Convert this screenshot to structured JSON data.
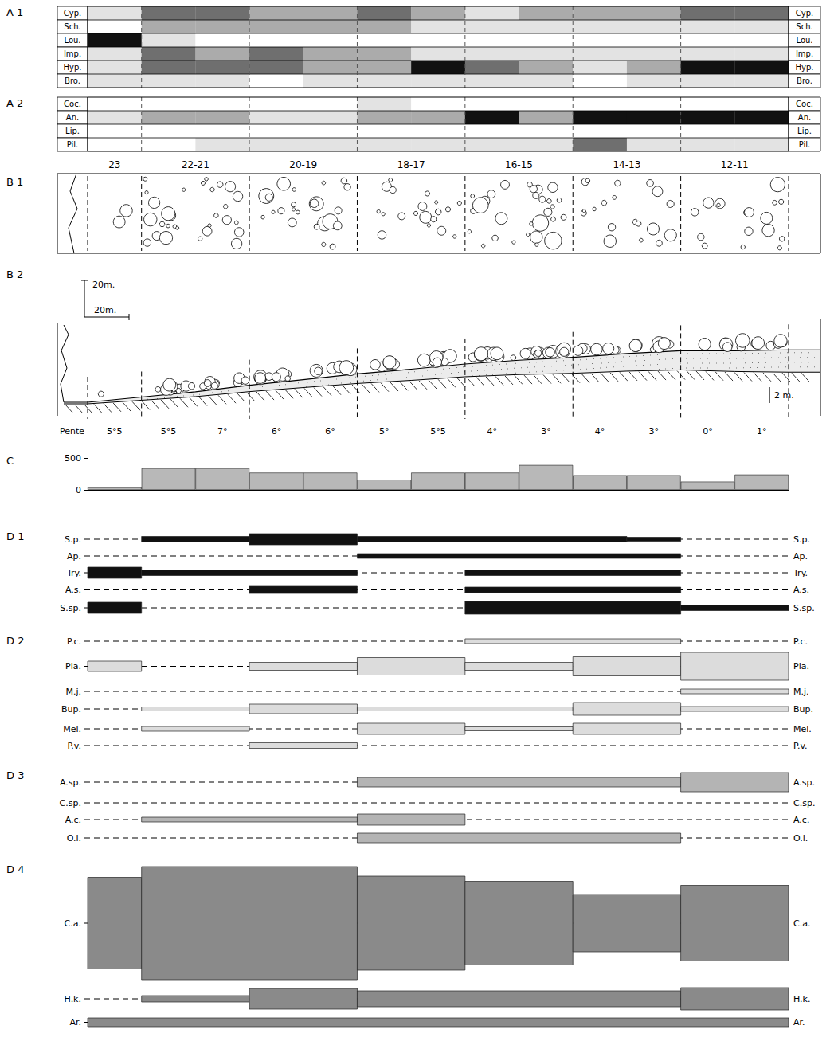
{
  "chart_data": {
    "type": "bar",
    "categories": [
      null,
      null,
      null,
      null,
      null,
      null,
      null,
      null,
      null,
      null,
      null,
      null,
      null
    ],
    "values": [
      40,
      340,
      340,
      270,
      270,
      160,
      270,
      270,
      390,
      230,
      230,
      130,
      240
    ],
    "ylim": [
      0,
      500
    ],
    "yticks": [
      0,
      500
    ],
    "tick_labels": "y",
    "color": "#b8b8b8"
  },
  "figure": {
    "sections": [
      "23",
      "22-21",
      "20-19",
      "18-17",
      "16-15",
      "14-13",
      "12-11"
    ],
    "A1": {
      "label": "A 1",
      "rows": [
        {
          "name": "Cyp.",
          "levels": [
            1,
            3,
            3,
            2,
            2,
            3,
            2,
            1,
            2,
            2,
            2,
            3,
            3
          ]
        },
        {
          "name": "Sch.",
          "levels": [
            0,
            2,
            2,
            2,
            2,
            2,
            1,
            1,
            1,
            1,
            1,
            1,
            1
          ]
        },
        {
          "name": "Lou.",
          "levels": [
            4,
            1,
            0,
            0,
            0,
            0,
            0,
            0,
            0,
            0,
            0,
            0,
            0
          ]
        },
        {
          "name": "Imp.",
          "levels": [
            1,
            3,
            2,
            3,
            2,
            2,
            1,
            1,
            1,
            1,
            1,
            1,
            1
          ]
        },
        {
          "name": "Hyp.",
          "levels": [
            1,
            3,
            3,
            3,
            2,
            2,
            4,
            3,
            2,
            1,
            2,
            4,
            4
          ]
        },
        {
          "name": "Bro.",
          "levels": [
            1,
            1,
            1,
            0,
            1,
            1,
            1,
            1,
            1,
            0,
            1,
            1,
            1
          ]
        }
      ]
    },
    "A2": {
      "label": "A 2",
      "rows": [
        {
          "name": "Coc.",
          "levels": [
            0,
            0,
            0,
            0,
            0,
            1,
            0,
            0,
            0,
            0,
            0,
            0,
            0
          ]
        },
        {
          "name": "An.",
          "levels": [
            1,
            2,
            2,
            1,
            1,
            2,
            2,
            4,
            2,
            4,
            4,
            4,
            4
          ]
        },
        {
          "name": "Lip.",
          "levels": [
            0,
            0,
            0,
            0,
            0,
            0,
            0,
            0,
            0,
            0,
            0,
            0,
            0
          ]
        },
        {
          "name": "Pil.",
          "levels": [
            0,
            0,
            1,
            1,
            1,
            1,
            1,
            1,
            1,
            3,
            1,
            1,
            1
          ]
        }
      ]
    },
    "B1": {
      "label": "B 1"
    },
    "B2": {
      "label": "B 2",
      "slope_title": "Pente",
      "slopes": [
        {
          "value": 5.5,
          "label": "5°5"
        },
        {
          "value": 5.5,
          "label": "5°5"
        },
        {
          "value": 7,
          "label": "7°"
        },
        {
          "value": 6,
          "label": "6°"
        },
        {
          "value": 6,
          "label": "6°"
        },
        {
          "value": 5,
          "label": "5°"
        },
        {
          "value": 5.5,
          "label": "5°5"
        },
        {
          "value": 4,
          "label": "4°"
        },
        {
          "value": 3,
          "label": "3°"
        },
        {
          "value": 4,
          "label": "4°"
        },
        {
          "value": 3,
          "label": "3°"
        },
        {
          "value": 0,
          "label": "0°"
        },
        {
          "value": 1,
          "label": "1°"
        }
      ],
      "scale_labels": [
        "20m.",
        "20m.",
        "2 m."
      ]
    },
    "C": {
      "label": "C"
    },
    "D": [
      {
        "label": "D 1",
        "color": "#111111",
        "rows": [
          {
            "name": "S.p.",
            "values": [
              0,
              7,
              7,
              14,
              14,
              7,
              7,
              7,
              7,
              7,
              5,
              0,
              0
            ]
          },
          {
            "name": "Ap.",
            "values": [
              0,
              0,
              0,
              0,
              0,
              6,
              6,
              6,
              6,
              6,
              6,
              0,
              0
            ]
          },
          {
            "name": "Try.",
            "values": [
              14,
              7,
              7,
              7,
              7,
              0,
              0,
              7,
              7,
              7,
              7,
              0,
              0
            ]
          },
          {
            "name": "A.s.",
            "values": [
              0,
              0,
              0,
              9,
              9,
              0,
              0,
              7,
              7,
              7,
              7,
              0,
              0
            ]
          },
          {
            "name": "S.sp.",
            "values": [
              14,
              0,
              0,
              0,
              0,
              0,
              0,
              16,
              16,
              16,
              16,
              7,
              7
            ]
          }
        ]
      },
      {
        "label": "D 2",
        "color": "#dcdcdc",
        "rows": [
          {
            "name": "P.c.",
            "values": [
              0,
              0,
              0,
              0,
              0,
              0,
              0,
              6,
              6,
              6,
              6,
              0,
              0
            ]
          },
          {
            "name": "Pla.",
            "values": [
              13,
              0,
              0,
              10,
              10,
              22,
              22,
              10,
              10,
              24,
              24,
              35,
              35
            ]
          },
          {
            "name": "M.j.",
            "values": [
              0,
              0,
              0,
              0,
              0,
              0,
              0,
              0,
              0,
              0,
              0,
              6,
              6
            ]
          },
          {
            "name": "Bup.",
            "values": [
              0,
              5,
              5,
              12,
              12,
              5,
              5,
              5,
              5,
              16,
              16,
              6,
              6
            ]
          },
          {
            "name": "Mel.",
            "values": [
              0,
              6,
              6,
              0,
              0,
              14,
              14,
              5,
              5,
              14,
              14,
              0,
              0
            ]
          },
          {
            "name": "P.v.",
            "values": [
              0,
              0,
              0,
              7,
              7,
              0,
              0,
              0,
              0,
              0,
              0,
              0,
              0
            ]
          }
        ]
      },
      {
        "label": "D 3",
        "color": "#b4b4b4",
        "rows": [
          {
            "name": "A.sp.",
            "values": [
              0,
              0,
              0,
              0,
              0,
              12,
              12,
              12,
              12,
              12,
              12,
              24,
              24
            ]
          },
          {
            "name": "C.sp.",
            "values": [
              0,
              0,
              0,
              0,
              0,
              0,
              0,
              0,
              0,
              0,
              0,
              0,
              0
            ]
          },
          {
            "name": "A.c.",
            "values": [
              0,
              6,
              6,
              6,
              6,
              14,
              14,
              0,
              0,
              0,
              0,
              0,
              0
            ]
          },
          {
            "name": "O.l.",
            "values": [
              0,
              0,
              0,
              0,
              0,
              12,
              12,
              12,
              12,
              12,
              12,
              0,
              0
            ]
          }
        ]
      },
      {
        "label": "D 4",
        "color": "#8a8a8a",
        "rows": [
          {
            "name": "C.a.",
            "values": [
              115,
              142,
              142,
              142,
              142,
              118,
              118,
              105,
              105,
              72,
              72,
              95,
              95
            ]
          },
          {
            "name": "H.k.",
            "values": [
              0,
              8,
              8,
              26,
              26,
              20,
              20,
              20,
              20,
              20,
              20,
              28,
              28
            ]
          },
          {
            "name": "Ar.",
            "values": [
              11,
              11,
              11,
              11,
              11,
              11,
              11,
              11,
              11,
              11,
              11,
              11,
              11
            ]
          }
        ]
      }
    ]
  }
}
